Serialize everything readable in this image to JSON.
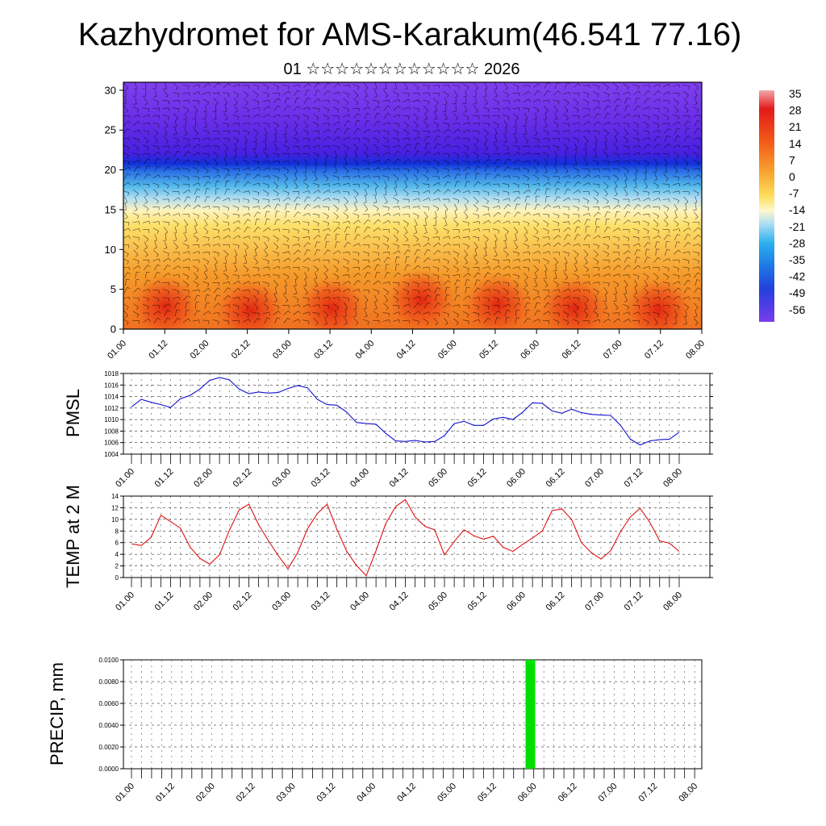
{
  "title": "Kazhydromet for AMS-Karakum(46.541 77.16)",
  "subtitle": "01 ☆☆☆☆☆☆☆☆☆☆☆☆ 2026",
  "time_ticks": [
    "01.00",
    "01.12",
    "02.00",
    "02.12",
    "03.00",
    "03.12",
    "04.00",
    "04.12",
    "05.00",
    "05.12",
    "06.00",
    "06.12",
    "07.00",
    "07.12",
    "08.00"
  ],
  "colors": {
    "pmsl_line": "#1010d0",
    "temp_line": "#e01010",
    "precip_bar": "#00e000",
    "grid": "#000000"
  },
  "chart_data": [
    {
      "type": "heatmap",
      "name": "temperature-wind-cross-section",
      "title": "",
      "x_ticks": [
        "01.00",
        "01.12",
        "02.00",
        "02.12",
        "03.00",
        "03.12",
        "04.00",
        "04.12",
        "05.00",
        "05.12",
        "06.00",
        "06.12",
        "07.00",
        "07.12",
        "08.00"
      ],
      "y_ticks": [
        0,
        5,
        10,
        15,
        20,
        25,
        30
      ],
      "ylim": [
        0,
        31
      ],
      "colorbar_labels": [
        "35",
        "28",
        "21",
        "14",
        "7",
        "0",
        "-7",
        "-14",
        "-21",
        "-28",
        "-35",
        "-42",
        "-49",
        "-56"
      ],
      "colorbar_range": [
        -60,
        38
      ],
      "overlay": "wind barbs"
    },
    {
      "type": "line",
      "name": "pmsl",
      "ylabel": "PMSL",
      "ylim": [
        1004,
        1018
      ],
      "y_ticks": [
        1004,
        1006,
        1008,
        1010,
        1012,
        1014,
        1016,
        1018
      ],
      "x_ticks": [
        "01.00",
        "01.12",
        "02.00",
        "02.12",
        "03.00",
        "03.12",
        "04.00",
        "04.12",
        "05.00",
        "05.12",
        "06.00",
        "06.12",
        "07.00",
        "07.12",
        "08.00"
      ],
      "x_step_hours": 3,
      "values": [
        1012.2,
        1013.5,
        1013.0,
        1012.6,
        1012.1,
        1013.6,
        1014.2,
        1015.3,
        1016.8,
        1017.3,
        1016.9,
        1015.3,
        1014.5,
        1014.8,
        1014.6,
        1014.7,
        1015.4,
        1015.9,
        1015.5,
        1013.5,
        1012.6,
        1012.5,
        1011.3,
        1009.5,
        1009.3,
        1009.2,
        1007.6,
        1006.3,
        1006.2,
        1006.4,
        1006.1,
        1006.2,
        1007.2,
        1009.3,
        1009.7,
        1009.0,
        1009.0,
        1010.1,
        1010.4,
        1010.0,
        1011.3,
        1012.9,
        1012.8,
        1011.5,
        1011.1,
        1011.8,
        1011.2,
        1010.9,
        1010.8,
        1010.7,
        1009.0,
        1006.6,
        1005.6,
        1006.3,
        1006.5,
        1006.6,
        1007.8
      ]
    },
    {
      "type": "line",
      "name": "temp-2m",
      "ylabel": "TEMP at 2 M",
      "ylim": [
        0,
        14
      ],
      "y_ticks": [
        0,
        2,
        4,
        6,
        8,
        10,
        12,
        14
      ],
      "x_ticks": [
        "01.00",
        "01.12",
        "02.00",
        "02.12",
        "03.00",
        "03.12",
        "04.00",
        "04.12",
        "05.00",
        "05.12",
        "06.00",
        "06.12",
        "07.00",
        "07.12",
        "08.00"
      ],
      "x_step_hours": 3,
      "values": [
        5.8,
        5.5,
        6.9,
        10.7,
        9.6,
        8.5,
        5.2,
        3.3,
        2.3,
        3.9,
        8.1,
        11.6,
        12.6,
        9.1,
        6.3,
        3.8,
        1.5,
        4.3,
        8.4,
        11.0,
        12.6,
        8.3,
        4.5,
        2.1,
        0.3,
        4.6,
        9.3,
        12.2,
        13.4,
        10.4,
        8.8,
        8.2,
        3.9,
        6.2,
        8.2,
        7.2,
        6.6,
        7.1,
        5.2,
        4.5,
        5.7,
        6.8,
        8.0,
        11.5,
        11.8,
        10.0,
        6.0,
        4.3,
        3.2,
        4.6,
        7.9,
        10.4,
        11.9,
        9.5,
        6.3,
        5.9,
        4.5
      ]
    },
    {
      "type": "bar",
      "name": "precip",
      "ylabel": "PRECIP, mm",
      "ylim": [
        0,
        0.01
      ],
      "y_ticks": [
        "0.0000",
        "0.0020",
        "0.0040",
        "0.0060",
        "0.0080",
        "0.0100"
      ],
      "x_ticks": [
        "01.00",
        "01.12",
        "02.00",
        "02.12",
        "03.00",
        "03.12",
        "04.00",
        "04.12",
        "05.00",
        "05.12",
        "06.00",
        "06.12",
        "07.00",
        "07.12",
        "08.00"
      ],
      "bars": [
        {
          "time_hours": 119,
          "value": 0.01
        }
      ]
    }
  ]
}
